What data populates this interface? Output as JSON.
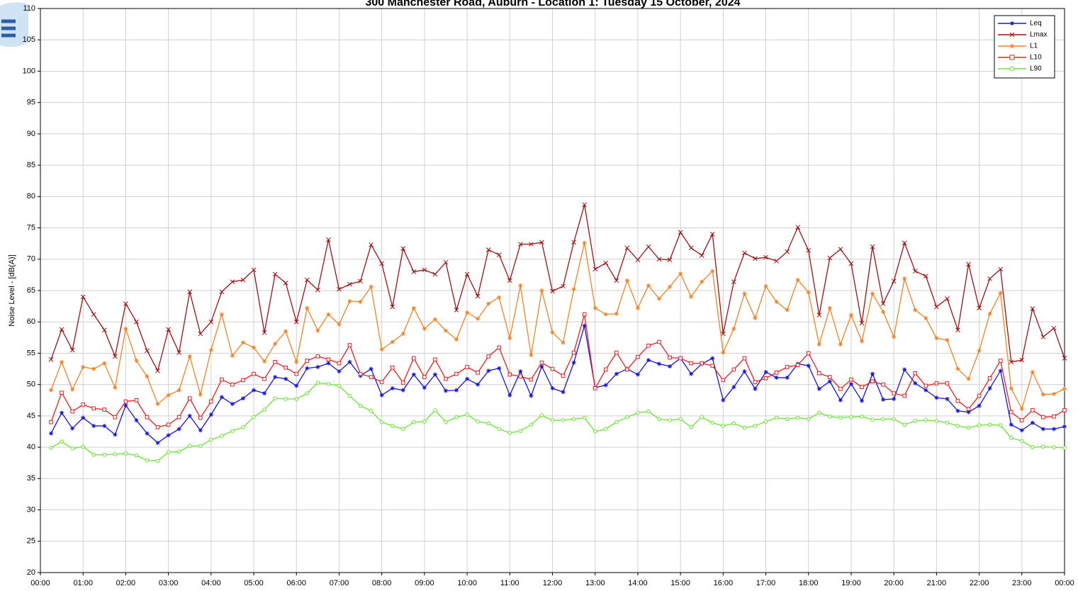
{
  "chart_data": {
    "type": "line",
    "title": "300 Manchester Road, Auburn - Location 1: Tuesday 15 October, 2024",
    "y_label": "Noise Level - [dB(A)]",
    "x": [
      15,
      30,
      45,
      60,
      75,
      90,
      105,
      120,
      135,
      150,
      165,
      180,
      195,
      210,
      225,
      240,
      255,
      270,
      285,
      300,
      315,
      330,
      345,
      360,
      375,
      390,
      405,
      420,
      435,
      450,
      465,
      480,
      495,
      510,
      525,
      540,
      555,
      570,
      585,
      600,
      615,
      630,
      645,
      660,
      675,
      690,
      705,
      720,
      735,
      750,
      765,
      780,
      795,
      810,
      825,
      840,
      855,
      870,
      885,
      900,
      915,
      930,
      945,
      960,
      975,
      990,
      1005,
      1020,
      1035,
      1050,
      1065,
      1080,
      1095,
      1110,
      1125,
      1140,
      1155,
      1170,
      1185,
      1200,
      1215,
      1230,
      1245,
      1260,
      1275,
      1290,
      1305,
      1320,
      1335,
      1350,
      1365,
      1380,
      1395,
      1410,
      1425,
      1440
    ],
    "xlim": [
      0,
      1440
    ],
    "xticks": [
      {
        "value": 0,
        "label": "00:00"
      },
      {
        "value": 60,
        "label": "01:00"
      },
      {
        "value": 120,
        "label": "02:00"
      },
      {
        "value": 180,
        "label": "03:00"
      },
      {
        "value": 240,
        "label": "04:00"
      },
      {
        "value": 300,
        "label": "05:00"
      },
      {
        "value": 360,
        "label": "06:00"
      },
      {
        "value": 420,
        "label": "07:00"
      },
      {
        "value": 480,
        "label": "08:00"
      },
      {
        "value": 540,
        "label": "09:00"
      },
      {
        "value": 600,
        "label": "10:00"
      },
      {
        "value": 660,
        "label": "11:00"
      },
      {
        "value": 720,
        "label": "12:00"
      },
      {
        "value": 780,
        "label": "13:00"
      },
      {
        "value": 840,
        "label": "14:00"
      },
      {
        "value": 900,
        "label": "15:00"
      },
      {
        "value": 960,
        "label": "16:00"
      },
      {
        "value": 1020,
        "label": "17:00"
      },
      {
        "value": 1080,
        "label": "18:00"
      },
      {
        "value": 1140,
        "label": "19:00"
      },
      {
        "value": 1200,
        "label": "20:00"
      },
      {
        "value": 1260,
        "label": "21:00"
      },
      {
        "value": 1320,
        "label": "22:00"
      },
      {
        "value": 1380,
        "label": "23:00"
      },
      {
        "value": 1440,
        "label": "00:00"
      }
    ],
    "ylim": [
      20,
      110
    ],
    "yticks": [
      20,
      25,
      30,
      35,
      40,
      45,
      50,
      55,
      60,
      65,
      70,
      75,
      80,
      85,
      90,
      95,
      100,
      105,
      110
    ],
    "grid": true,
    "legend": "top-right",
    "series": [
      {
        "name": "Leq",
        "color": "#1414e0",
        "marker": "asterisk",
        "values": [
          42.2,
          45.5,
          43,
          44.7,
          43.4,
          43.4,
          42,
          46.7,
          44.3,
          42.2,
          40.7,
          41.9,
          42.9,
          45,
          42.7,
          45.2,
          48,
          46.9,
          47.8,
          49.1,
          48.6,
          51.2,
          50.9,
          49.8,
          52.6,
          52.8,
          53.4,
          52.1,
          53.6,
          51.4,
          52.5,
          48.3,
          49.4,
          49.1,
          51.6,
          49.5,
          51.6,
          49,
          49.1,
          50.9,
          50,
          52.2,
          52.6,
          48.3,
          52.1,
          48.2,
          52.9,
          49.4,
          48.8,
          53.5,
          59.4,
          49.5,
          49.9,
          51.7,
          52.5,
          51.6,
          53.9,
          53.3,
          52.9,
          54.2,
          51.7,
          53.3,
          54.2,
          47.5,
          49.6,
          52.1,
          49.3,
          52,
          51.1,
          51.1,
          53.3,
          53,
          49.3,
          50.5,
          47.5,
          50.1,
          47.4,
          51.7,
          47.6,
          47.7,
          52.4,
          50.2,
          49.1,
          47.9,
          47.7,
          45.8,
          45.6,
          46.6,
          49.4,
          52.2,
          43.6,
          42.7,
          43.9,
          42.9,
          42.9,
          43.3
        ]
      },
      {
        "name": "Lmax",
        "color": "#a01010",
        "marker": "cross",
        "values": [
          54,
          58.8,
          55.5,
          64,
          61.2,
          58.7,
          54.5,
          62.9,
          60,
          55.4,
          52.2,
          58.8,
          55.1,
          64.8,
          58.1,
          60,
          64.8,
          66.4,
          66.7,
          68.3,
          58.3,
          67.6,
          66.2,
          60,
          66.7,
          65.1,
          73.1,
          65.2,
          66,
          66.5,
          72.3,
          69.3,
          62.4,
          71.7,
          68,
          68.3,
          67.6,
          69.5,
          61.9,
          67.6,
          64.1,
          71.5,
          70.7,
          66.6,
          72.4,
          72.4,
          72.7,
          64.9,
          65.7,
          72.7,
          78.7,
          68.4,
          69.4,
          66.6,
          71.8,
          69.9,
          72,
          70,
          69.9,
          74.3,
          71.8,
          70.6,
          74,
          58.1,
          66.4,
          71,
          70.1,
          70.3,
          69.7,
          71.2,
          75.1,
          71.4,
          61.1,
          70.2,
          71.6,
          69.3,
          59.8,
          72,
          62.9,
          66.5,
          72.6,
          68.1,
          67.3,
          62.4,
          63.7,
          58.7,
          69.2,
          62.2,
          66.9,
          68.4,
          53.6,
          53.9,
          62.1,
          57.6,
          59,
          54.2
        ]
      },
      {
        "name": "L1",
        "color": "#f58220",
        "marker": "asterisk",
        "values": [
          49.1,
          53.6,
          49.2,
          52.8,
          52.5,
          53.4,
          49.5,
          58.9,
          53.8,
          51.3,
          46.9,
          48.3,
          49.1,
          54.5,
          48.4,
          55.5,
          61.2,
          54.6,
          56.7,
          55.9,
          53.7,
          56.5,
          58.5,
          53.6,
          62.2,
          58.6,
          61.2,
          59.6,
          63.3,
          63.2,
          65.6,
          55.6,
          56.8,
          58.1,
          62.2,
          58.9,
          60.4,
          58.6,
          57.2,
          61.5,
          60.5,
          62.9,
          63.9,
          57.4,
          65.8,
          54.7,
          65,
          58.3,
          56.7,
          65.2,
          72.6,
          62.2,
          61.2,
          61.3,
          66.6,
          62.2,
          65.8,
          63.7,
          65.6,
          67.7,
          64,
          66.4,
          68.1,
          55.1,
          58.9,
          64.5,
          60.6,
          65.7,
          63.2,
          61.9,
          66.7,
          64.7,
          56.4,
          62.2,
          56.4,
          61.1,
          56.9,
          64.5,
          61.6,
          57.6,
          66.9,
          61.9,
          60.6,
          57.4,
          57.1,
          52.5,
          50.9,
          55.4,
          61.3,
          64.6,
          49.4,
          46.1,
          52,
          48.4,
          48.5,
          49.3
        ]
      },
      {
        "name": "L10",
        "color": "#ee1c1c",
        "marker": "square",
        "values": [
          44,
          48.7,
          45.7,
          46.8,
          46.2,
          46,
          44.8,
          47.3,
          47.5,
          44.8,
          43.2,
          43.6,
          44.8,
          47.8,
          44.7,
          47.3,
          50.8,
          50,
          50.7,
          51.7,
          50.9,
          53.6,
          52.7,
          51.7,
          53.8,
          54.5,
          54,
          53.4,
          56.3,
          51.7,
          51.2,
          50.4,
          52.7,
          50.3,
          54.2,
          51.2,
          54,
          50.9,
          51.7,
          52.8,
          51.9,
          54.5,
          55.9,
          51.6,
          51.3,
          50.8,
          53.5,
          52.5,
          51.4,
          55.1,
          61.2,
          49.4,
          52.4,
          55.1,
          52.4,
          54.4,
          56.2,
          56.8,
          54.3,
          54.2,
          53.4,
          53.4,
          53,
          50.7,
          52.4,
          54.2,
          50.4,
          51,
          51.9,
          52.8,
          53.1,
          55,
          51.8,
          51.2,
          49.3,
          50.8,
          49.6,
          50.5,
          50,
          48.6,
          48.2,
          51.8,
          49.8,
          50.2,
          50.2,
          47.4,
          46.1,
          48.2,
          51,
          53.8,
          45.6,
          44.3,
          45.9,
          44.8,
          44.9,
          45.9
        ]
      },
      {
        "name": "L90",
        "color": "#66e82e",
        "marker": "circle",
        "values": [
          39.9,
          40.9,
          39.8,
          40.1,
          38.8,
          38.8,
          38.9,
          39,
          38.7,
          37.9,
          37.8,
          39.2,
          39.3,
          40.2,
          40.2,
          41.2,
          41.8,
          42.6,
          43.2,
          44.8,
          46,
          47.8,
          47.7,
          47.7,
          48.6,
          50.3,
          50.1,
          49.8,
          48.2,
          46.6,
          45.8,
          44,
          43.4,
          42.9,
          44,
          44.1,
          45.9,
          44,
          44.8,
          45.2,
          44.1,
          43.8,
          42.9,
          42.3,
          42.6,
          43.6,
          45.1,
          44.3,
          44.3,
          44.5,
          44.7,
          42.5,
          42.9,
          44,
          44.8,
          45.5,
          45.7,
          44.5,
          44.3,
          44.5,
          43.2,
          44.8,
          43.9,
          43.4,
          43.8,
          43.1,
          43.4,
          44.1,
          44.7,
          44.5,
          44.7,
          44.5,
          45.5,
          44.9,
          44.7,
          44.8,
          44.9,
          44.4,
          44.5,
          44.5,
          43.6,
          44.2,
          44.3,
          44.2,
          43.9,
          43.4,
          43.1,
          43.5,
          43.6,
          43.5,
          41.5,
          41,
          40,
          40.1,
          40,
          39.9
        ]
      }
    ]
  }
}
